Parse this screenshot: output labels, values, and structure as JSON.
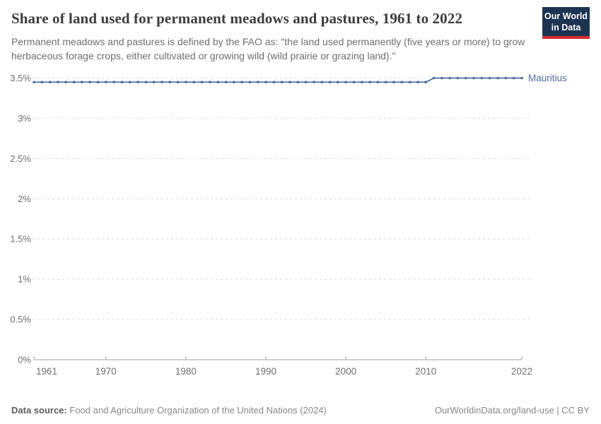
{
  "header": {
    "title": "Share of land used for permanent meadows and pastures, 1961 to 2022",
    "subtitle": "Permanent meadows and pastures is defined by the FAO as: \"the land used permanently (five years or more) to grow herbaceous forage crops, either cultivated or growing wild (wild prairie or grazing land).\"",
    "logo": {
      "line1": "Our World",
      "line2": "in Data"
    }
  },
  "chart_data": {
    "type": "line",
    "title": "Share of land used for permanent meadows and pastures, 1961 to 2022",
    "xlabel": "",
    "ylabel": "",
    "xlim": [
      1961,
      2022
    ],
    "ylim": [
      0,
      3.5
    ],
    "grid": "dashed-horizontal",
    "legend_position": "end-of-line-label",
    "x_ticks": [
      1961,
      1970,
      1980,
      1990,
      2000,
      2010,
      2022
    ],
    "x_tick_labels": [
      "1961",
      "1970",
      "1980",
      "1990",
      "2000",
      "2010",
      "2022"
    ],
    "y_ticks": [
      0,
      0.5,
      1,
      1.5,
      2,
      2.5,
      3,
      3.5
    ],
    "y_tick_labels": [
      "0%",
      "0.5%",
      "1%",
      "1.5%",
      "2%",
      "2.5%",
      "3%",
      "3.5%"
    ],
    "series": [
      {
        "name": "Mauritius",
        "color": "#4c6a9c",
        "x": [
          1961,
          1962,
          1963,
          1964,
          1965,
          1966,
          1967,
          1968,
          1969,
          1970,
          1971,
          1972,
          1973,
          1974,
          1975,
          1976,
          1977,
          1978,
          1979,
          1980,
          1981,
          1982,
          1983,
          1984,
          1985,
          1986,
          1987,
          1988,
          1989,
          1990,
          1991,
          1992,
          1993,
          1994,
          1995,
          1996,
          1997,
          1998,
          1999,
          2000,
          2001,
          2002,
          2003,
          2004,
          2005,
          2006,
          2007,
          2008,
          2009,
          2010,
          2011,
          2012,
          2013,
          2014,
          2015,
          2016,
          2017,
          2018,
          2019,
          2020,
          2021,
          2022
        ],
        "values": [
          3.45,
          3.45,
          3.45,
          3.45,
          3.45,
          3.45,
          3.45,
          3.45,
          3.45,
          3.45,
          3.45,
          3.45,
          3.45,
          3.45,
          3.45,
          3.45,
          3.45,
          3.45,
          3.45,
          3.45,
          3.45,
          3.45,
          3.45,
          3.45,
          3.45,
          3.45,
          3.45,
          3.45,
          3.45,
          3.45,
          3.45,
          3.45,
          3.45,
          3.45,
          3.45,
          3.45,
          3.45,
          3.45,
          3.45,
          3.45,
          3.45,
          3.45,
          3.45,
          3.45,
          3.45,
          3.45,
          3.45,
          3.45,
          3.45,
          3.45,
          3.5,
          3.5,
          3.5,
          3.5,
          3.5,
          3.5,
          3.5,
          3.5,
          3.5,
          3.5,
          3.5,
          3.5
        ]
      }
    ],
    "colors": {
      "line": "#4c6a9c",
      "grid": "#dcdcdc",
      "axis": "#a3a3a3",
      "tick_text": "#6e6e6e"
    }
  },
  "footer": {
    "source_label": "Data source:",
    "source_text": "Food and Agriculture Organization of the United Nations (2024)",
    "right_text": "OurWorldinData.org/land-use | CC BY"
  }
}
